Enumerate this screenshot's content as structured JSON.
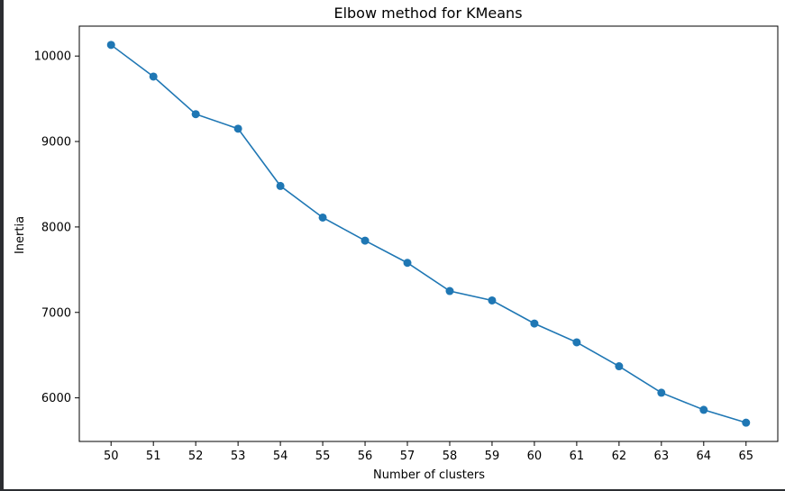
{
  "chart_data": {
    "type": "line",
    "title": "Elbow method for KMeans",
    "xlabel": "Number of clusters",
    "ylabel": "Inertia",
    "x": [
      50,
      51,
      52,
      53,
      54,
      55,
      56,
      57,
      58,
      59,
      60,
      61,
      62,
      63,
      64,
      65
    ],
    "series": [
      {
        "values": [
          10130,
          9760,
          9320,
          9150,
          8480,
          8110,
          7840,
          7580,
          7250,
          7140,
          6870,
          6650,
          6370,
          6060,
          5860,
          5710
        ],
        "color": "#1f77b4",
        "marker": "circle"
      }
    ],
    "xticks": [
      "50",
      "51",
      "52",
      "53",
      "54",
      "55",
      "56",
      "57",
      "58",
      "59",
      "60",
      "61",
      "62",
      "63",
      "64",
      "65"
    ],
    "yticks": [
      6000,
      7000,
      8000,
      9000,
      10000
    ],
    "xlim": [
      49.25,
      65.75
    ],
    "ylim": [
      5490,
      10350
    ],
    "grid": false
  }
}
